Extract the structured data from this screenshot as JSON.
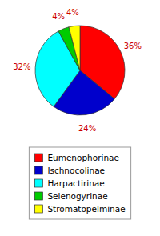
{
  "chart_data": {
    "type": "pie",
    "categories": [
      "Eumenophorinae",
      "Ischnocolinae",
      "Harpactirinae",
      "Selenogyrinae",
      "Stromatopelminae"
    ],
    "values": [
      36,
      24,
      32,
      4,
      4
    ],
    "value_labels": [
      "36%",
      "24%",
      "32%",
      "4%",
      "4%"
    ],
    "colors": [
      "#ff0000",
      "#0000cc",
      "#00ffff",
      "#00cc00",
      "#ffff00"
    ],
    "data_labels": true,
    "legend": "bottom"
  }
}
